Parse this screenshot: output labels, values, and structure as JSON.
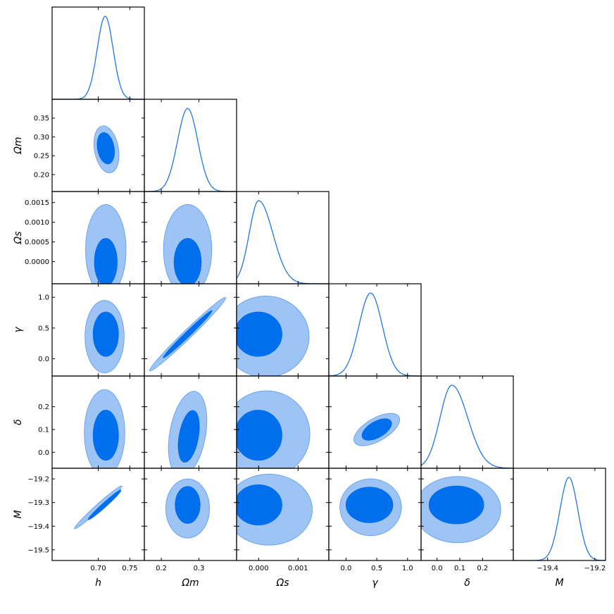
{
  "colors": {
    "line": "#1f78e0",
    "contour_inner": "#006fed",
    "contour_outer": "#9ec4f5",
    "contour_outer_edge": "#6aa6ee",
    "frame": "#000000",
    "background": "#ffffff"
  },
  "chart_data": {
    "type": "corner",
    "params": [
      {
        "key": "h",
        "label": "h",
        "range": [
          0.627,
          0.773
        ],
        "ticks": [
          {
            "v": 0.7,
            "label": "0.70"
          },
          {
            "v": 0.75,
            "label": "0.75"
          }
        ],
        "mean": 0.711,
        "sd": 0.0126
      },
      {
        "key": "Om",
        "label": "Ωm",
        "range": [
          0.155,
          0.4
        ],
        "ticks": [
          {
            "v": 0.2,
            "label": "0.2"
          },
          {
            "v": 0.3,
            "label": "0.3"
          }
        ],
        "ticks_y": [
          {
            "v": 0.2,
            "label": "0.20"
          },
          {
            "v": 0.25,
            "label": "0.25"
          },
          {
            "v": 0.3,
            "label": "0.30"
          },
          {
            "v": 0.35,
            "label": "0.35"
          }
        ],
        "mean": 0.27,
        "sd": 0.027
      },
      {
        "key": "Os",
        "label": "Ωs",
        "range": [
          -0.00056,
          0.00178
        ],
        "ticks": [
          {
            "v": 0.0,
            "label": "0.000"
          },
          {
            "v": 0.001,
            "label": "0.001"
          }
        ],
        "ticks_y": [
          {
            "v": 0.0,
            "label": "0.0000"
          },
          {
            "v": 0.0005,
            "label": "0.0005"
          },
          {
            "v": 0.001,
            "label": "0.0010"
          },
          {
            "v": 0.0015,
            "label": "0.0015"
          }
        ],
        "mean": 0.0,
        "sd": 0.00033
      },
      {
        "key": "gamma",
        "label": "γ",
        "range": [
          -0.28,
          1.22
        ],
        "ticks": [
          {
            "v": 0.0,
            "label": "0.0"
          },
          {
            "v": 0.5,
            "label": "0.5"
          },
          {
            "v": 1.0,
            "label": "1.0"
          }
        ],
        "ticks_y": [
          {
            "v": 0.0,
            "label": "0.0"
          },
          {
            "v": 0.5,
            "label": "0.5"
          },
          {
            "v": 1.0,
            "label": "1.0"
          }
        ],
        "mean": 0.4,
        "sd": 0.19
      },
      {
        "key": "delta",
        "label": "δ",
        "range": [
          -0.07,
          0.335
        ],
        "ticks": [
          {
            "v": 0.0,
            "label": "0.0"
          },
          {
            "v": 0.1,
            "label": "0.1"
          },
          {
            "v": 0.2,
            "label": "0.2"
          }
        ],
        "ticks_y": [
          {
            "v": 0.0,
            "label": "0.0"
          },
          {
            "v": 0.1,
            "label": "0.1"
          },
          {
            "v": 0.2,
            "label": "0.2"
          }
        ],
        "mean": 0.07,
        "sd": 0.06
      },
      {
        "key": "M",
        "label": "M",
        "range": [
          -19.545,
          -19.155
        ],
        "ticks": [
          {
            "v": -19.4,
            "label": "−19.4"
          },
          {
            "v": -19.2,
            "label": "−19.2"
          }
        ],
        "ticks_y": [
          {
            "v": -19.2,
            "label": "−19.2"
          },
          {
            "v": -19.3,
            "label": "−19.3"
          },
          {
            "v": -19.4,
            "label": "−19.4"
          },
          {
            "v": -19.5,
            "label": "−19.5"
          }
        ],
        "mean": -19.3,
        "sd": 0.04
      }
    ],
    "marginals": [
      {
        "param": "h",
        "shape": "gaussian",
        "mean": 0.711,
        "sd": 0.0126
      },
      {
        "param": "Om",
        "shape": "gaussian",
        "mean": 0.27,
        "sd": 0.027
      },
      {
        "param": "Os",
        "shape": "skewed",
        "mode": 0.0,
        "sd_left": 0.00024,
        "sd_right": 0.00036
      },
      {
        "param": "gamma",
        "shape": "gaussian",
        "mean": 0.4,
        "sd": 0.19
      },
      {
        "param": "delta",
        "shape": "skewed",
        "mode": 0.065,
        "sd_left": 0.052,
        "sd_right": 0.07
      },
      {
        "param": "M",
        "shape": "gaussian",
        "mean": -19.31,
        "sd": 0.038
      }
    ],
    "contours": [
      {
        "x": "h",
        "y": "Om",
        "outer": {
          "cx": 0.713,
          "cy": 0.267,
          "rx": 0.026,
          "ry": 0.063,
          "rot": -10
        },
        "inner": {
          "cx": 0.712,
          "cy": 0.27,
          "rx": 0.018,
          "ry": 0.042,
          "rot": -10
        }
      },
      {
        "x": "h",
        "y": "Os",
        "outer": {
          "cx": 0.712,
          "cy": 0.0003,
          "rx": 0.032,
          "ry": 0.00115,
          "rot": 0
        },
        "inner": {
          "cx": 0.712,
          "cy": -1e-05,
          "rx": 0.018,
          "ry": 0.0006,
          "rot": 0
        }
      },
      {
        "x": "Om",
        "y": "Os",
        "outer": {
          "cx": 0.27,
          "cy": 0.0003,
          "rx": 0.064,
          "ry": 0.00115,
          "rot": 0
        },
        "inner": {
          "cx": 0.27,
          "cy": -1e-05,
          "rx": 0.036,
          "ry": 0.0006,
          "rot": 0
        }
      },
      {
        "x": "h",
        "y": "gamma",
        "outer": {
          "cx": 0.71,
          "cy": 0.36,
          "rx": 0.031,
          "ry": 0.59,
          "rot": 0
        },
        "inner": {
          "cx": 0.712,
          "cy": 0.4,
          "rx": 0.02,
          "ry": 0.36,
          "rot": 0
        }
      },
      {
        "x": "Om",
        "y": "gamma",
        "outer": {
          "cx": 0.27,
          "cy": 0.4,
          "rx": 0.14,
          "ry": 0.07,
          "rot": -44
        },
        "inner": {
          "cx": 0.27,
          "cy": 0.4,
          "rx": 0.09,
          "ry": 0.04,
          "rot": -44
        }
      },
      {
        "x": "Os",
        "y": "gamma",
        "outer": {
          "cx": 0.00018,
          "cy": 0.36,
          "rx": 0.0011,
          "ry": 0.66,
          "rot": 0
        },
        "inner": {
          "cx": -1e-05,
          "cy": 0.4,
          "rx": 0.0006,
          "ry": 0.36,
          "rot": 0
        }
      },
      {
        "x": "h",
        "y": "delta",
        "outer": {
          "cx": 0.71,
          "cy": 0.085,
          "rx": 0.032,
          "ry": 0.19,
          "rot": 0
        },
        "inner": {
          "cx": 0.712,
          "cy": 0.075,
          "rx": 0.02,
          "ry": 0.11,
          "rot": 0
        }
      },
      {
        "x": "Om",
        "y": "delta",
        "outer": {
          "cx": 0.27,
          "cy": 0.08,
          "rx": 0.065,
          "ry": 0.19,
          "rot": 10
        },
        "inner": {
          "cx": 0.273,
          "cy": 0.07,
          "rx": 0.035,
          "ry": 0.115,
          "rot": 10
        }
      },
      {
        "x": "Os",
        "y": "delta",
        "outer": {
          "cx": 0.0002,
          "cy": 0.08,
          "rx": 0.0011,
          "ry": 0.19,
          "rot": 0
        },
        "inner": {
          "cx": -1e-05,
          "cy": 0.075,
          "rx": 0.0006,
          "ry": 0.11,
          "rot": 0
        }
      },
      {
        "x": "gamma",
        "y": "delta",
        "outer": {
          "cx": 0.5,
          "cy": 0.1,
          "rx": 0.5,
          "ry": 0.05,
          "rot": -30
        },
        "inner": {
          "cx": 0.5,
          "cy": 0.1,
          "rx": 0.32,
          "ry": 0.035,
          "rot": -30
        }
      },
      {
        "x": "h",
        "y": "M",
        "outer": {
          "cx": 0.7,
          "cy": -19.32,
          "rx": 0.052,
          "ry": 0.012,
          "rot": -42
        },
        "inner": {
          "cx": 0.71,
          "cy": -19.31,
          "rx": 0.036,
          "ry": 0.006,
          "rot": -42
        }
      },
      {
        "x": "Om",
        "y": "M",
        "outer": {
          "cx": 0.27,
          "cy": -19.325,
          "rx": 0.058,
          "ry": 0.125,
          "rot": 0
        },
        "inner": {
          "cx": 0.27,
          "cy": -19.31,
          "rx": 0.033,
          "ry": 0.078,
          "rot": 0
        }
      },
      {
        "x": "Os",
        "y": "M",
        "outer": {
          "cx": 0.00026,
          "cy": -19.33,
          "rx": 0.0011,
          "ry": 0.15,
          "rot": 0
        },
        "inner": {
          "cx": -1e-05,
          "cy": -19.31,
          "rx": 0.0006,
          "ry": 0.085,
          "rot": 0
        }
      },
      {
        "x": "gamma",
        "y": "M",
        "outer": {
          "cx": 0.4,
          "cy": -19.32,
          "rx": 0.5,
          "ry": 0.12,
          "rot": 0
        },
        "inner": {
          "cx": 0.38,
          "cy": -19.31,
          "rx": 0.38,
          "ry": 0.075,
          "rot": 0
        }
      },
      {
        "x": "delta",
        "y": "M",
        "outer": {
          "cx": 0.09,
          "cy": -19.33,
          "rx": 0.19,
          "ry": 0.14,
          "rot": 0
        },
        "inner": {
          "cx": 0.085,
          "cy": -19.31,
          "rx": 0.12,
          "ry": 0.08,
          "rot": 0
        }
      }
    ],
    "grid": false,
    "legend": "none"
  }
}
